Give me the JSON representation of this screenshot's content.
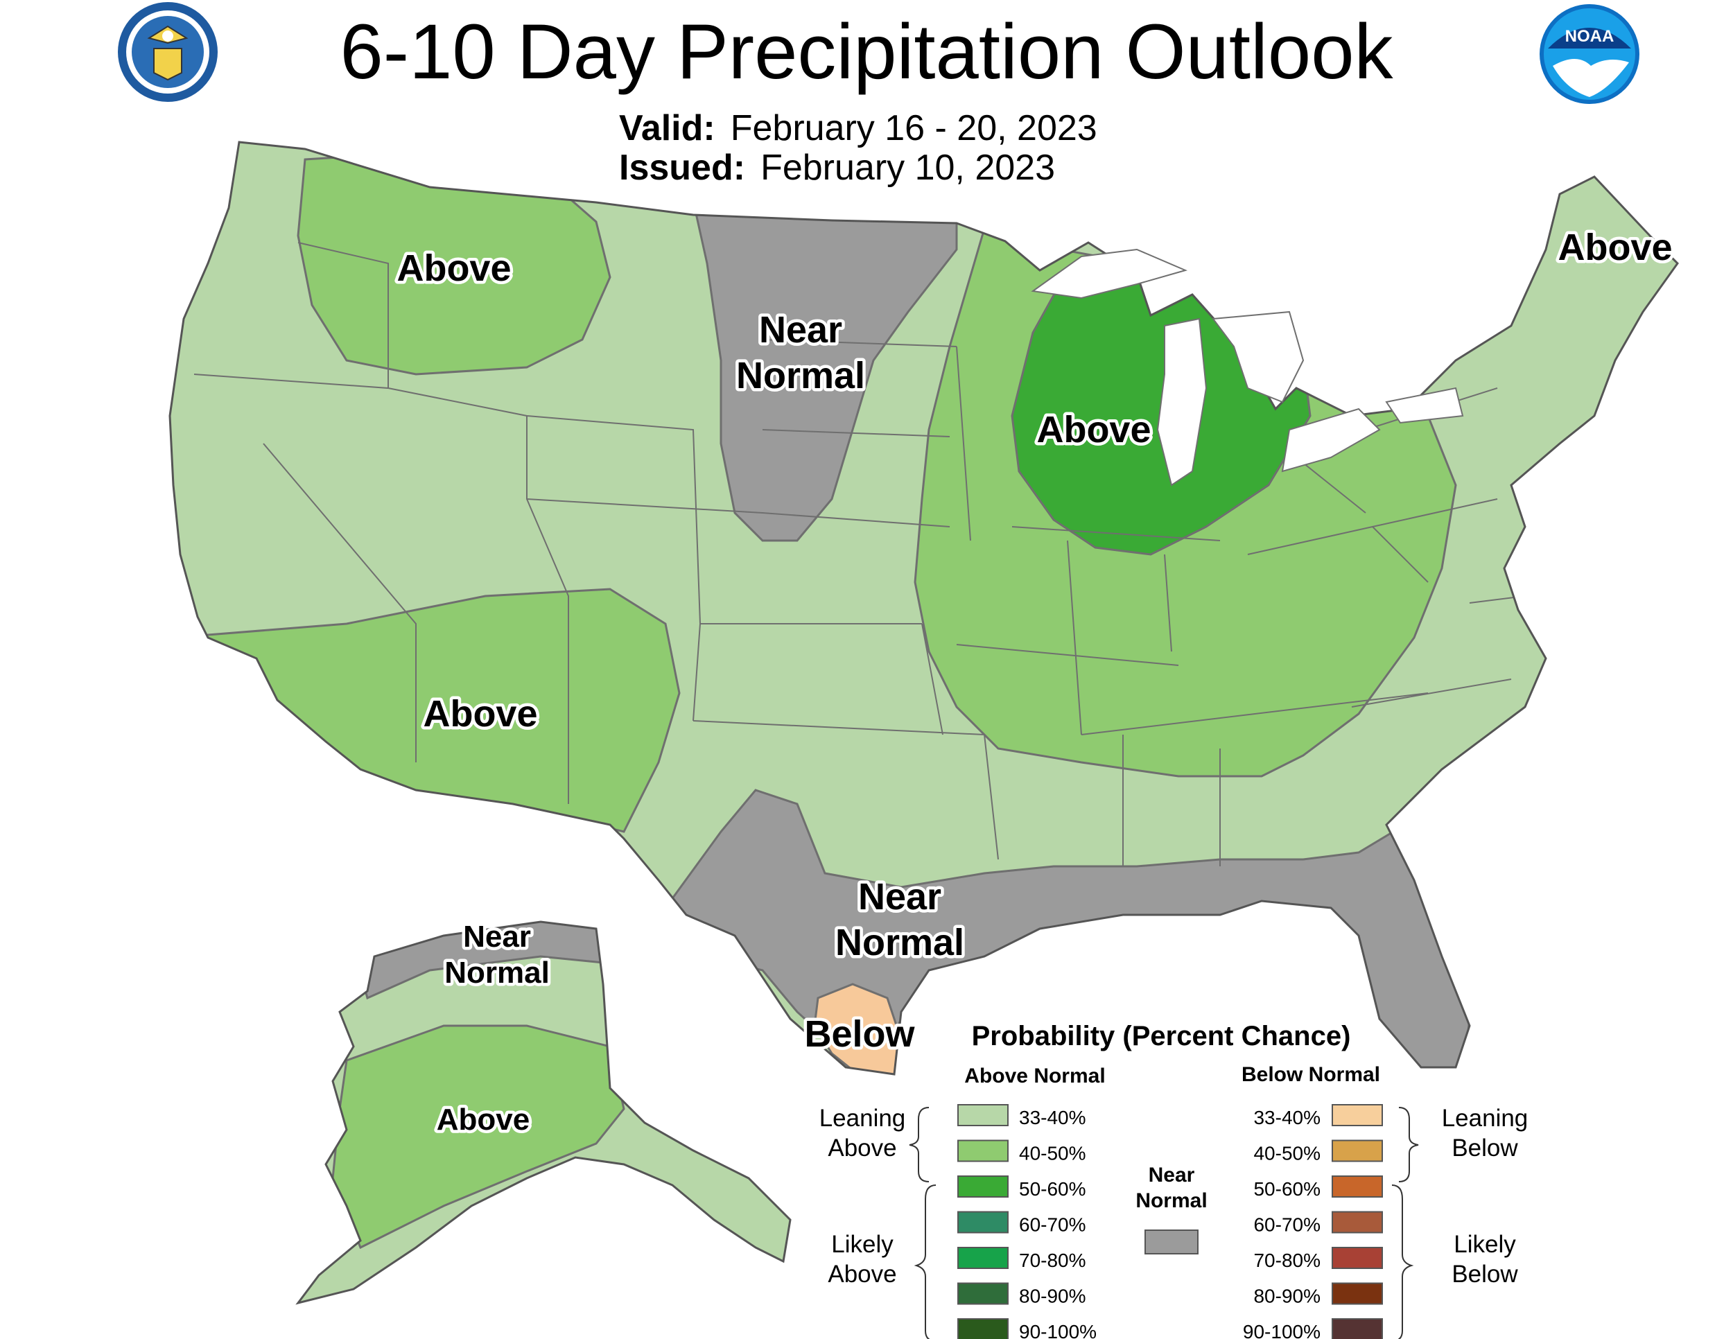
{
  "title": "6-10 Day Precipitation Outlook",
  "valid": {
    "label": "Valid:",
    "value": "February 16 - 20, 2023"
  },
  "issued": {
    "label": "Issued:",
    "value": "February 10, 2023"
  },
  "logos": {
    "left": "department-of-commerce-seal",
    "right": "noaa-logo",
    "right_text": "NOAA"
  },
  "region_labels": {
    "northwest": "Above",
    "southwest": "Above",
    "great_lakes": "Above",
    "northeast": "Above",
    "dakotas_1": "Near",
    "dakotas_2": "Normal",
    "gulf_1": "Near",
    "gulf_2": "Normal",
    "south_texas": "Below",
    "alaska_north_1": "Near",
    "alaska_north_2": "Normal",
    "alaska_south": "Above"
  },
  "colors": {
    "above_33_40": "#b7d7a8",
    "above_40_50": "#8fcb70",
    "above_50_60": "#3aaa35",
    "near_normal": "#9b9b9b",
    "below_33_40": "#f7c99a",
    "state_lines": "#6f6f6f",
    "water": "#ffffff"
  },
  "legend": {
    "title": "Probability (Percent Chance)",
    "above_header": "Above Normal",
    "below_header": "Below Normal",
    "leaning_above": [
      "Leaning",
      "Above"
    ],
    "likely_above": [
      "Likely",
      "Above"
    ],
    "leaning_below": [
      "Leaning",
      "Below"
    ],
    "likely_below": [
      "Likely",
      "Below"
    ],
    "near_normal": [
      "Near",
      "Normal"
    ],
    "above_items": [
      {
        "label": "33-40%",
        "color": "#b7d7a8"
      },
      {
        "label": "40-50%",
        "color": "#8fcb70"
      },
      {
        "label": "50-60%",
        "color": "#3aaa35"
      },
      {
        "label": "60-70%",
        "color": "#2e8b65"
      },
      {
        "label": "70-80%",
        "color": "#17a34a"
      },
      {
        "label": "80-90%",
        "color": "#2f6d3a"
      },
      {
        "label": "90-100%",
        "color": "#2a5a1c"
      }
    ],
    "below_items": [
      {
        "label": "33-40%",
        "color": "#f7cf9c"
      },
      {
        "label": "40-50%",
        "color": "#d8a24a"
      },
      {
        "label": "50-60%",
        "color": "#c8662a"
      },
      {
        "label": "60-70%",
        "color": "#a85a3a"
      },
      {
        "label": "70-80%",
        "color": "#a84135"
      },
      {
        "label": "80-90%",
        "color": "#7a3210"
      },
      {
        "label": "90-100%",
        "color": "#553333"
      }
    ]
  }
}
